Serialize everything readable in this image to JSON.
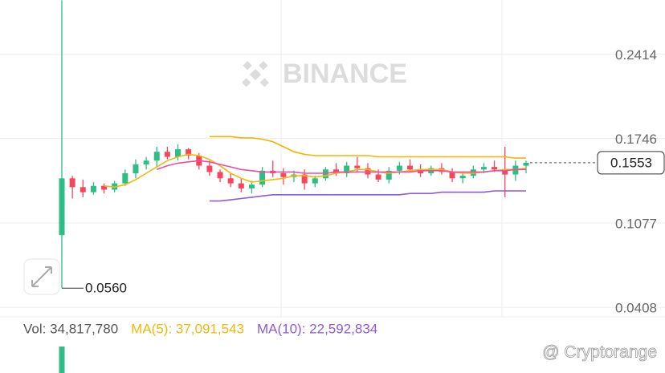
{
  "chart_data": {
    "type": "candlestick",
    "watermark": "BINANCE",
    "ylim": [
      0.0333,
      0.2842
    ],
    "yticks": [
      0.2414,
      0.1746,
      0.1077,
      0.0408
    ],
    "grid": true,
    "up_color": "#2ebd85",
    "down_color": "#f6465d",
    "candles": [
      [
        0.098,
        0.284,
        0.056,
        0.143
      ],
      [
        0.143,
        0.145,
        0.127,
        0.136
      ],
      [
        0.136,
        0.142,
        0.128,
        0.132
      ],
      [
        0.132,
        0.14,
        0.13,
        0.137
      ],
      [
        0.137,
        0.139,
        0.131,
        0.134
      ],
      [
        0.134,
        0.141,
        0.132,
        0.139
      ],
      [
        0.139,
        0.15,
        0.137,
        0.147
      ],
      [
        0.147,
        0.158,
        0.143,
        0.154
      ],
      [
        0.154,
        0.16,
        0.15,
        0.157
      ],
      [
        0.157,
        0.168,
        0.152,
        0.164
      ],
      [
        0.164,
        0.168,
        0.158,
        0.16
      ],
      [
        0.16,
        0.17,
        0.157,
        0.166
      ],
      [
        0.166,
        0.167,
        0.158,
        0.161
      ],
      [
        0.161,
        0.163,
        0.15,
        0.153
      ],
      [
        0.153,
        0.157,
        0.145,
        0.148
      ],
      [
        0.148,
        0.15,
        0.14,
        0.143
      ],
      [
        0.143,
        0.147,
        0.136,
        0.139
      ],
      [
        0.139,
        0.143,
        0.132,
        0.135
      ],
      [
        0.135,
        0.141,
        0.131,
        0.138
      ],
      [
        0.138,
        0.152,
        0.136,
        0.149
      ],
      [
        0.149,
        0.157,
        0.144,
        0.147
      ],
      [
        0.147,
        0.151,
        0.138,
        0.144
      ],
      [
        0.144,
        0.149,
        0.14,
        0.146
      ],
      [
        0.146,
        0.15,
        0.134,
        0.139
      ],
      [
        0.139,
        0.145,
        0.136,
        0.143
      ],
      [
        0.143,
        0.152,
        0.141,
        0.15
      ],
      [
        0.15,
        0.155,
        0.145,
        0.147
      ],
      [
        0.147,
        0.156,
        0.144,
        0.153
      ],
      [
        0.153,
        0.16,
        0.148,
        0.151
      ],
      [
        0.151,
        0.155,
        0.143,
        0.146
      ],
      [
        0.146,
        0.15,
        0.14,
        0.142
      ],
      [
        0.142,
        0.152,
        0.139,
        0.149
      ],
      [
        0.149,
        0.156,
        0.146,
        0.153
      ],
      [
        0.153,
        0.158,
        0.148,
        0.15
      ],
      [
        0.15,
        0.154,
        0.144,
        0.147
      ],
      [
        0.147,
        0.153,
        0.145,
        0.151
      ],
      [
        0.151,
        0.155,
        0.146,
        0.148
      ],
      [
        0.148,
        0.151,
        0.14,
        0.143
      ],
      [
        0.143,
        0.148,
        0.139,
        0.145
      ],
      [
        0.145,
        0.153,
        0.143,
        0.15
      ],
      [
        0.15,
        0.155,
        0.147,
        0.152
      ],
      [
        0.152,
        0.157,
        0.148,
        0.15
      ],
      [
        0.15,
        0.168,
        0.128,
        0.146
      ],
      [
        0.146,
        0.157,
        0.141,
        0.153
      ],
      [
        0.153,
        0.157,
        0.147,
        0.1553
      ]
    ],
    "series": [
      {
        "color": "#f0b90b",
        "values": [
          null,
          null,
          null,
          null,
          0.137,
          0.136,
          0.138,
          0.142,
          0.147,
          0.152,
          0.157,
          0.16,
          0.162,
          0.161,
          0.158,
          0.153,
          0.147,
          0.143,
          0.14,
          0.141,
          0.142,
          0.143,
          0.145,
          0.145,
          0.144,
          0.145,
          0.147,
          0.148,
          0.15,
          0.15,
          0.148,
          0.147,
          0.148,
          0.149,
          0.15,
          0.15,
          0.15,
          0.148,
          0.147,
          0.147,
          0.148,
          0.149,
          0.15,
          0.15,
          0.151
        ]
      },
      {
        "color": "#e84fa5",
        "values": [
          null,
          null,
          null,
          null,
          null,
          null,
          null,
          null,
          null,
          0.15,
          0.153,
          0.155,
          0.156,
          0.157,
          0.156,
          0.154,
          0.152,
          0.15,
          0.149,
          0.148,
          0.148,
          0.148,
          0.148,
          0.147,
          0.147,
          0.147,
          0.148,
          0.148,
          0.148,
          0.148,
          0.148,
          0.148,
          0.148,
          0.148,
          0.149,
          0.149,
          0.149,
          0.148,
          0.148,
          0.148,
          0.148,
          0.149,
          0.149,
          0.15,
          0.15
        ]
      },
      {
        "color": "#f5b300",
        "values": [
          null,
          null,
          null,
          null,
          null,
          null,
          null,
          null,
          null,
          null,
          null,
          null,
          null,
          null,
          0.176,
          0.176,
          0.176,
          0.175,
          0.175,
          0.174,
          0.172,
          0.168,
          0.164,
          0.162,
          0.161,
          0.161,
          0.161,
          0.161,
          0.161,
          0.161,
          0.16,
          0.16,
          0.16,
          0.16,
          0.16,
          0.16,
          0.16,
          0.16,
          0.16,
          0.16,
          0.16,
          0.16,
          0.16,
          0.159,
          0.159
        ]
      },
      {
        "color": "#8e5bd6",
        "values": [
          null,
          null,
          null,
          null,
          null,
          null,
          null,
          null,
          null,
          null,
          null,
          null,
          null,
          null,
          0.125,
          0.125,
          0.126,
          0.127,
          0.128,
          0.129,
          0.13,
          0.13,
          0.13,
          0.13,
          0.13,
          0.13,
          0.13,
          0.13,
          0.13,
          0.13,
          0.13,
          0.13,
          0.13,
          0.131,
          0.131,
          0.131,
          0.132,
          0.132,
          0.132,
          0.132,
          0.132,
          0.133,
          0.133,
          0.133,
          0.133
        ]
      }
    ],
    "low_label": {
      "value": 0.056,
      "label": "0.0560"
    },
    "last_price": {
      "value": 0.1553,
      "label": "0.1553"
    },
    "volume_legend": [
      {
        "text": "Vol: 34,817,780",
        "color": "#555555"
      },
      {
        "text": "MA(5): 37,091,543",
        "color": "#f0b90b"
      },
      {
        "text": "MA(10): 22,592,834",
        "color": "#8e5bd6"
      }
    ],
    "credit": "@ Cryptorange"
  }
}
